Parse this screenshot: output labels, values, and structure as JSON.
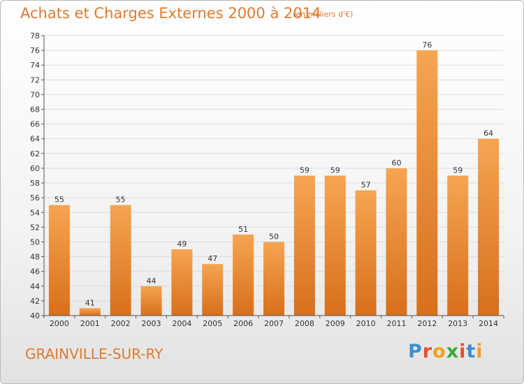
{
  "title": "Achats et Charges Externes 2000 à 2014",
  "subtitle": "(en milliers d'€)",
  "town": "GRAINVILLE-SUR-RY",
  "brand": {
    "letters": [
      "P",
      "r",
      "o",
      "x",
      "i",
      "t",
      "i"
    ],
    "colors": [
      "#3b8fd0",
      "#e0502f",
      "#f0a21c",
      "#3aa83a",
      "#e0502f",
      "#3b8fd0",
      "#f0a21c"
    ]
  },
  "colors": {
    "accent": "#e07a2f",
    "bar_top": "#f6a551",
    "bar_bottom": "#d86f1b",
    "grid": "#dcdcdc",
    "axis": "#555555"
  },
  "chart_data": {
    "type": "bar",
    "categories": [
      "2000",
      "2001",
      "2002",
      "2003",
      "2004",
      "2005",
      "2006",
      "2007",
      "2008",
      "2009",
      "2010",
      "2011",
      "2012",
      "2013",
      "2014"
    ],
    "values": [
      55,
      41,
      55,
      44,
      49,
      47,
      51,
      50,
      59,
      59,
      57,
      60,
      76,
      59,
      64
    ],
    "ylim": [
      40,
      78
    ],
    "yticks": [
      40,
      42,
      44,
      46,
      48,
      50,
      52,
      54,
      56,
      58,
      60,
      62,
      64,
      66,
      68,
      70,
      72,
      74,
      76,
      78
    ],
    "grid": true,
    "data_labels": true
  }
}
